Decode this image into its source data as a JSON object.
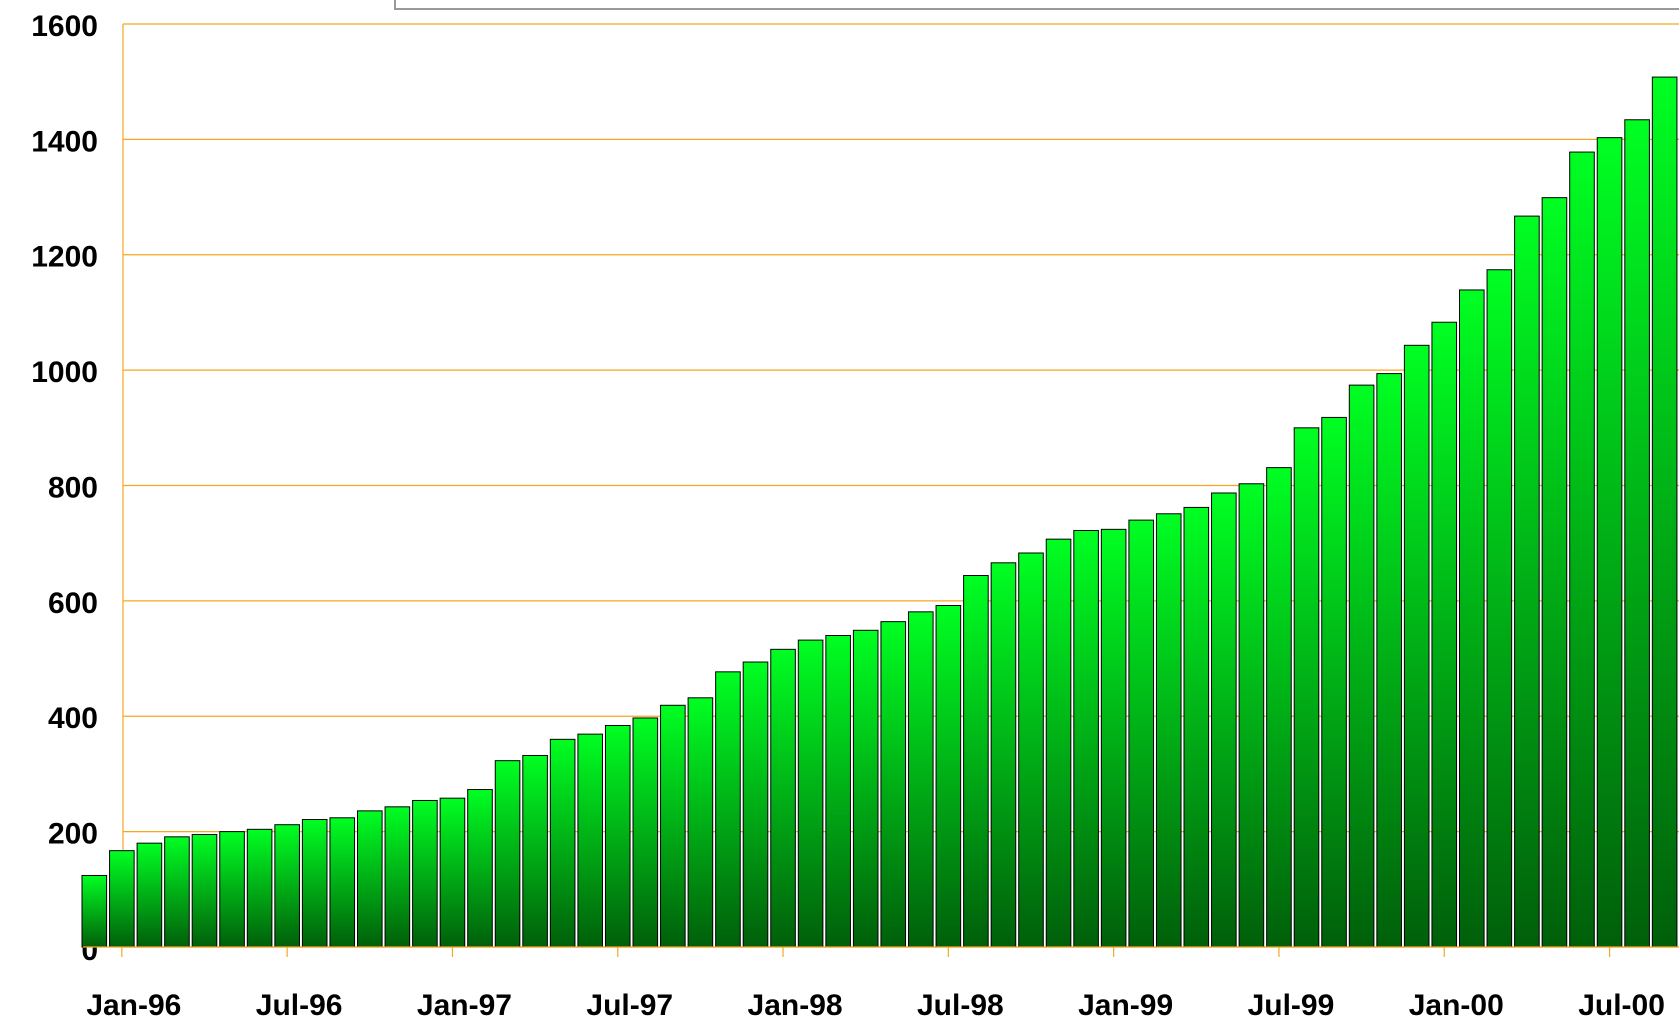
{
  "chart_data": {
    "type": "bar",
    "categories": [
      null,
      "Jan-96",
      null,
      null,
      null,
      null,
      null,
      "Jul-96",
      null,
      null,
      null,
      null,
      null,
      "Jan-97",
      null,
      null,
      null,
      null,
      null,
      "Jul-97",
      null,
      null,
      null,
      null,
      null,
      "Jan-98",
      null,
      null,
      null,
      null,
      null,
      "Jul-98",
      null,
      null,
      null,
      null,
      null,
      "Jan-99",
      null,
      null,
      null,
      null,
      null,
      "Jul-99",
      null,
      null,
      null,
      null,
      null,
      "Jan-00",
      null,
      null,
      null,
      null,
      null,
      "Jul-00",
      null,
      null
    ],
    "values": [
      124,
      167,
      180,
      191,
      195,
      200,
      204,
      212,
      221,
      224,
      236,
      243,
      254,
      258,
      273,
      323,
      332,
      360,
      369,
      384,
      397,
      419,
      432,
      477,
      494,
      516,
      532,
      540,
      549,
      564,
      581,
      592,
      644,
      666,
      683,
      707,
      722,
      724,
      740,
      751,
      762,
      787,
      803,
      831,
      900,
      918,
      974,
      994,
      1043,
      1083,
      1139,
      1174,
      1267,
      1299,
      1378,
      1403,
      1434,
      1508
    ],
    "color": "#00ff22",
    "ylim": [
      0,
      1600
    ],
    "yticks": [
      0,
      200,
      400,
      600,
      800,
      1000,
      1200,
      1400,
      1600
    ],
    "grid": true
  }
}
